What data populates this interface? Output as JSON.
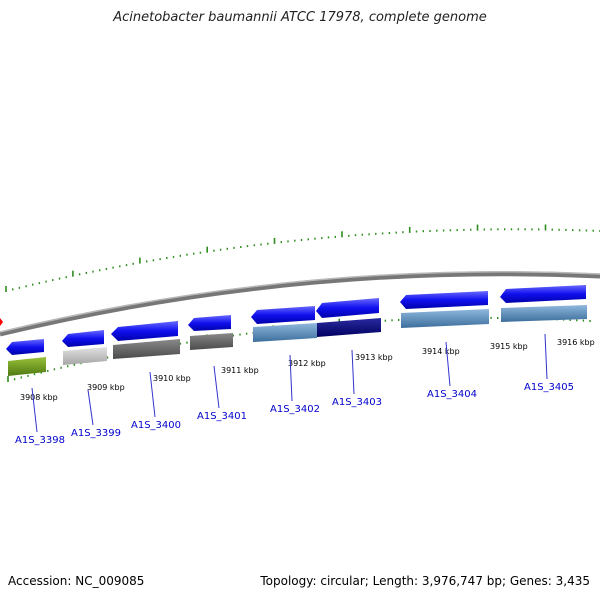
{
  "title": "Acinetobacter baumannii ATCC 17978, complete genome",
  "footer": {
    "accession": "Accession: NC_009085",
    "summary": "Topology: circular; Length: 3,976,747 bp; Genes: 3,435"
  },
  "scale_labels": [
    "3908 kbp",
    "3909 kbp",
    "3910 kbp",
    "3911 kbp",
    "3912 kbp",
    "3913 kbp",
    "3914 kbp",
    "3915 kbp",
    "3916 kbp"
  ],
  "genes": [
    {
      "label": "A1S_3398"
    },
    {
      "label": "A1S_3399"
    },
    {
      "label": "A1S_3400"
    },
    {
      "label": "A1S_3401"
    },
    {
      "label": "A1S_3402"
    },
    {
      "label": "A1S_3403"
    },
    {
      "label": "A1S_3404"
    },
    {
      "label": "A1S_3405"
    }
  ],
  "colors": {
    "backbone": "#888888",
    "cds": "#1a1aee",
    "tick": "#2e8b1e",
    "label": "#0000cc",
    "leader": "#3333cc",
    "marker": "#ff0000"
  }
}
